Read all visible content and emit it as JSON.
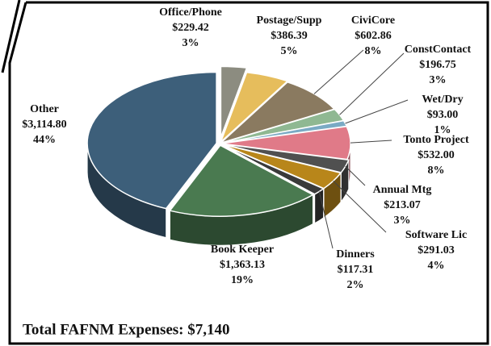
{
  "chart_data": {
    "type": "pie",
    "categories": [
      "Office/Phone",
      "Postage/Supp",
      "CiviCore",
      "ConstContact",
      "Wet/Dry",
      "Tonto Project",
      "Annual Mtg",
      "Software Lic",
      "Dinners",
      "Book Keeper",
      "Other"
    ],
    "values": [
      229.42,
      386.39,
      602.86,
      196.75,
      93.0,
      532.0,
      213.07,
      291.03,
      117.31,
      1363.13,
      3114.8
    ],
    "value_labels": [
      "$229.42",
      "$386.39",
      "$602.86",
      "$196.75",
      "$93.00",
      "$532.00",
      "$213.07",
      "$291.03",
      "$117.31",
      "$1,363.13",
      "$3,114.80"
    ],
    "percents": [
      3,
      5,
      8,
      3,
      1,
      8,
      3,
      4,
      2,
      19,
      44
    ],
    "percent_labels": [
      "3%",
      "5%",
      "8%",
      "3%",
      "1%",
      "8%",
      "3%",
      "4%",
      "2%",
      "19%",
      "44%"
    ],
    "colors": [
      "#8c8c80",
      "#e6bd5c",
      "#8a7a60",
      "#8fb892",
      "#7aaac4",
      "#e07a88",
      "#505050",
      "#b8861a",
      "#3a3a3a",
      "#4a7a50",
      "#3d5f7a"
    ],
    "annotation": "Total FAFNM Expenses: $7,140"
  }
}
